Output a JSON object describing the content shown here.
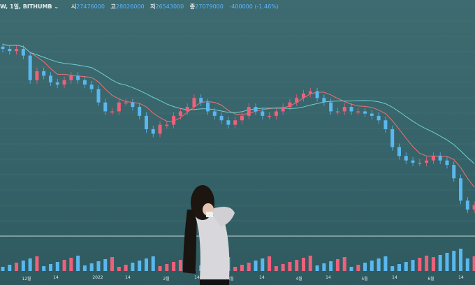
{
  "header": {
    "symbol": "W, 1일, BITHUMB ⌄",
    "open_label": "시",
    "open": "27476000",
    "high_label": "고",
    "high": "28026000",
    "low_label": "저",
    "low": "26543000",
    "close_label": "종",
    "close": "27079000",
    "change": "-400000 (-1.46%)"
  },
  "chart_data": {
    "type": "candlestick",
    "closes": [
      62,
      61.5,
      62,
      60.5,
      55,
      57,
      56,
      54.5,
      54,
      55,
      56,
      55,
      54,
      53,
      50,
      48,
      48,
      50,
      50,
      49,
      47,
      44,
      43,
      45,
      45,
      47,
      48,
      49,
      51,
      50,
      48,
      47,
      46,
      45,
      46,
      47,
      49,
      48,
      47,
      47,
      48,
      49,
      50,
      51,
      52,
      52.5,
      51,
      50,
      48,
      48,
      49,
      48,
      48,
      47.5,
      47,
      46,
      44,
      40,
      38,
      37,
      36.5,
      36.5,
      37,
      38,
      37,
      36,
      33,
      28,
      26,
      27
    ],
    "x_tick_labels": [
      "12월",
      "14",
      "2022",
      "14",
      "2월",
      "14",
      "3월",
      "14",
      "4월",
      "14",
      "5월",
      "14",
      "6월",
      "14"
    ],
    "colors": {
      "up": "#f0607a",
      "down": "#5ab8f0",
      "ma_short": "#f07070",
      "ma_long": "#70d0d0"
    }
  }
}
